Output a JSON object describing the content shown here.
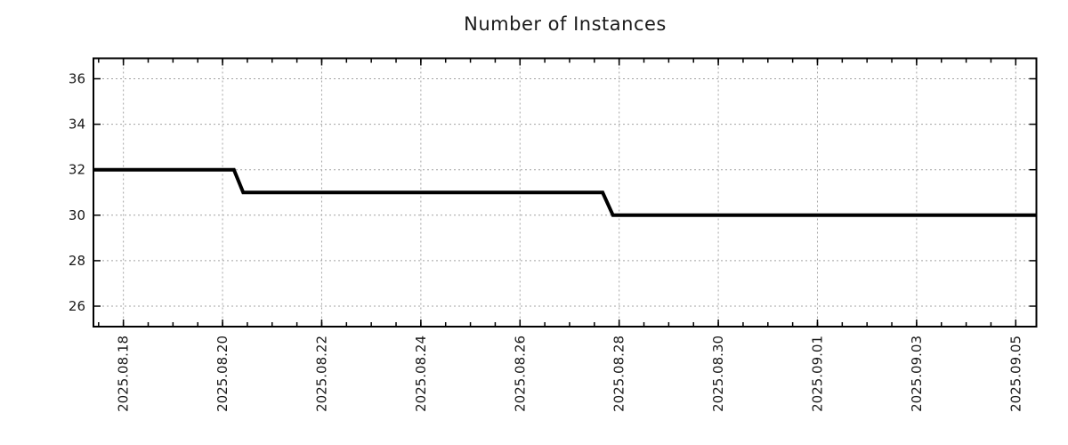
{
  "chart_data": {
    "type": "line",
    "title": "Number of Instances",
    "xlabel": "",
    "ylabel": "",
    "x_tick_labels": [
      "2025.08.18",
      "2025.08.20",
      "2025.08.22",
      "2025.08.24",
      "2025.08.26",
      "2025.08.28",
      "2025.08.30",
      "2025.09.01",
      "2025.09.03",
      "2025.09.05"
    ],
    "y_tick_labels": [
      26,
      28,
      30,
      32,
      34,
      36
    ],
    "x_range": [
      "2025-08-17 09:30",
      "2025-09-05 10:00"
    ],
    "ylim": [
      25.1,
      36.9
    ],
    "minor_x_tick_interval_hours": 12,
    "grid": true,
    "legend_position": "none",
    "series": [
      {
        "name": "Number of Instances",
        "color": "#000000",
        "points": [
          [
            "2025-08-17 09:30",
            32
          ],
          [
            "2025-08-20 05:30",
            32
          ],
          [
            "2025-08-20 10:00",
            31
          ],
          [
            "2025-08-27 16:00",
            31
          ],
          [
            "2025-08-27 21:00",
            30
          ],
          [
            "2025-09-05 10:00",
            30
          ]
        ]
      }
    ],
    "colors": {
      "line": "#000000",
      "grid": "#a3a3a3",
      "axis": "#000000",
      "text": "#1a1a1a",
      "background": "#ffffff"
    }
  }
}
